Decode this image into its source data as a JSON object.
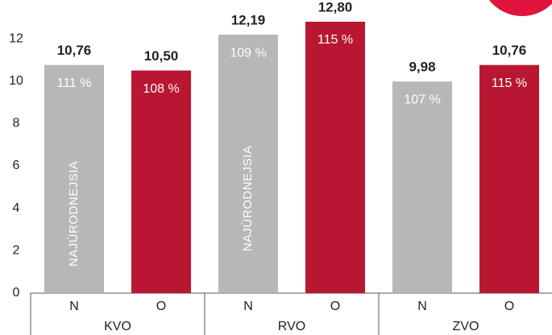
{
  "chart_data": {
    "type": "bar",
    "categories": [
      "N",
      "O",
      "N",
      "O",
      "N",
      "O"
    ],
    "groups": [
      "KVO",
      "RVO",
      "ZVO"
    ],
    "values": [
      10.76,
      10.5,
      12.19,
      12.8,
      9.98,
      10.76
    ],
    "value_labels": [
      "10,76",
      "10,50",
      "12,19",
      "12,80",
      "9,98",
      "10,76"
    ],
    "inner_labels": [
      "111 %",
      "108 %",
      "109 %",
      "115 %",
      "107 %",
      "115 %"
    ],
    "bar_notes": [
      "NAJÚRODNEJSIA",
      null,
      "NAJÚRODNEJSIA",
      null,
      null,
      null
    ],
    "colors": [
      "#b7b7b7",
      "#b91731",
      "#b7b7b7",
      "#b91731",
      "#b7b7b7",
      "#b91731"
    ],
    "ylim": [
      0,
      13
    ],
    "yticks": [
      0,
      2,
      4,
      6,
      8,
      10,
      12
    ],
    "grid": false
  }
}
